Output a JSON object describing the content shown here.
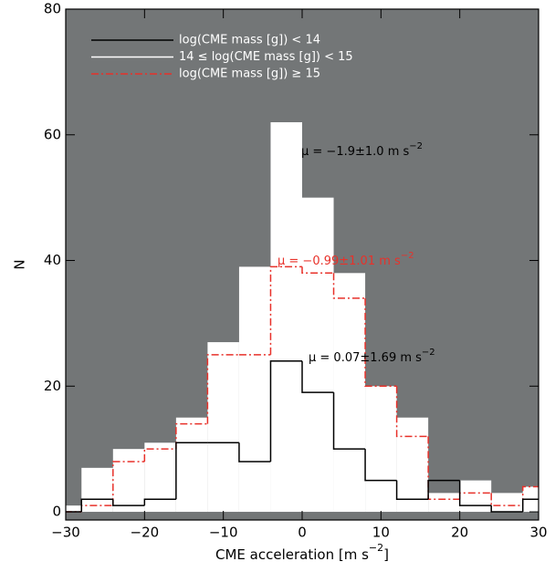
{
  "chart_data": {
    "type": "histogram",
    "xlabel": {
      "text": "CME acceleration [m s",
      "sup": "−2",
      "after": "]"
    },
    "ylabel": "N",
    "bins": [
      -32,
      -28,
      -24,
      -20,
      -16,
      -12,
      -8,
      -4,
      0,
      4,
      8,
      12,
      16,
      20,
      24,
      28,
      32
    ],
    "background": "#737677",
    "series": [
      {
        "name": "log(CME mass [g]) < 14",
        "color": "#000000",
        "style": "solid",
        "values": [
          0,
          2,
          1,
          2,
          11,
          11,
          8,
          24,
          19,
          10,
          5,
          2,
          5,
          1,
          0,
          2
        ]
      },
      {
        "name": "14 ≤ log(CME mass [g]) < 15",
        "color": "#ffffff",
        "style": "filled",
        "values": [
          1,
          7,
          10,
          11,
          15,
          27,
          39,
          62,
          50,
          38,
          20,
          15,
          3,
          5,
          3,
          4
        ]
      },
      {
        "name": "log(CME mass [g]) ≥ 15",
        "color": "#e8312a",
        "style": "dashdot",
        "values": [
          0,
          1,
          8,
          10,
          14,
          25,
          25,
          39,
          38,
          34,
          20,
          12,
          2,
          3,
          1,
          4
        ]
      }
    ],
    "annotations": [
      {
        "text": "μ = −1.9±1.0 m s",
        "sup": "−2",
        "color": "#000000"
      },
      {
        "text": "μ = −0.99±1.01 m s",
        "sup": "−2",
        "color": "#e8312a"
      },
      {
        "text": "μ = 0.07±1.69 m s",
        "sup": "−2",
        "color": "#000000"
      }
    ],
    "xlim": [
      -30,
      30
    ],
    "ylim": [
      -1.3,
      80
    ],
    "xticks": [
      {
        "value": -30,
        "label": "−30"
      },
      {
        "value": -20,
        "label": "−20"
      },
      {
        "value": -10,
        "label": "−10"
      },
      0,
      10,
      20,
      30
    ],
    "yticks": [
      0,
      20,
      40,
      60,
      80
    ]
  }
}
